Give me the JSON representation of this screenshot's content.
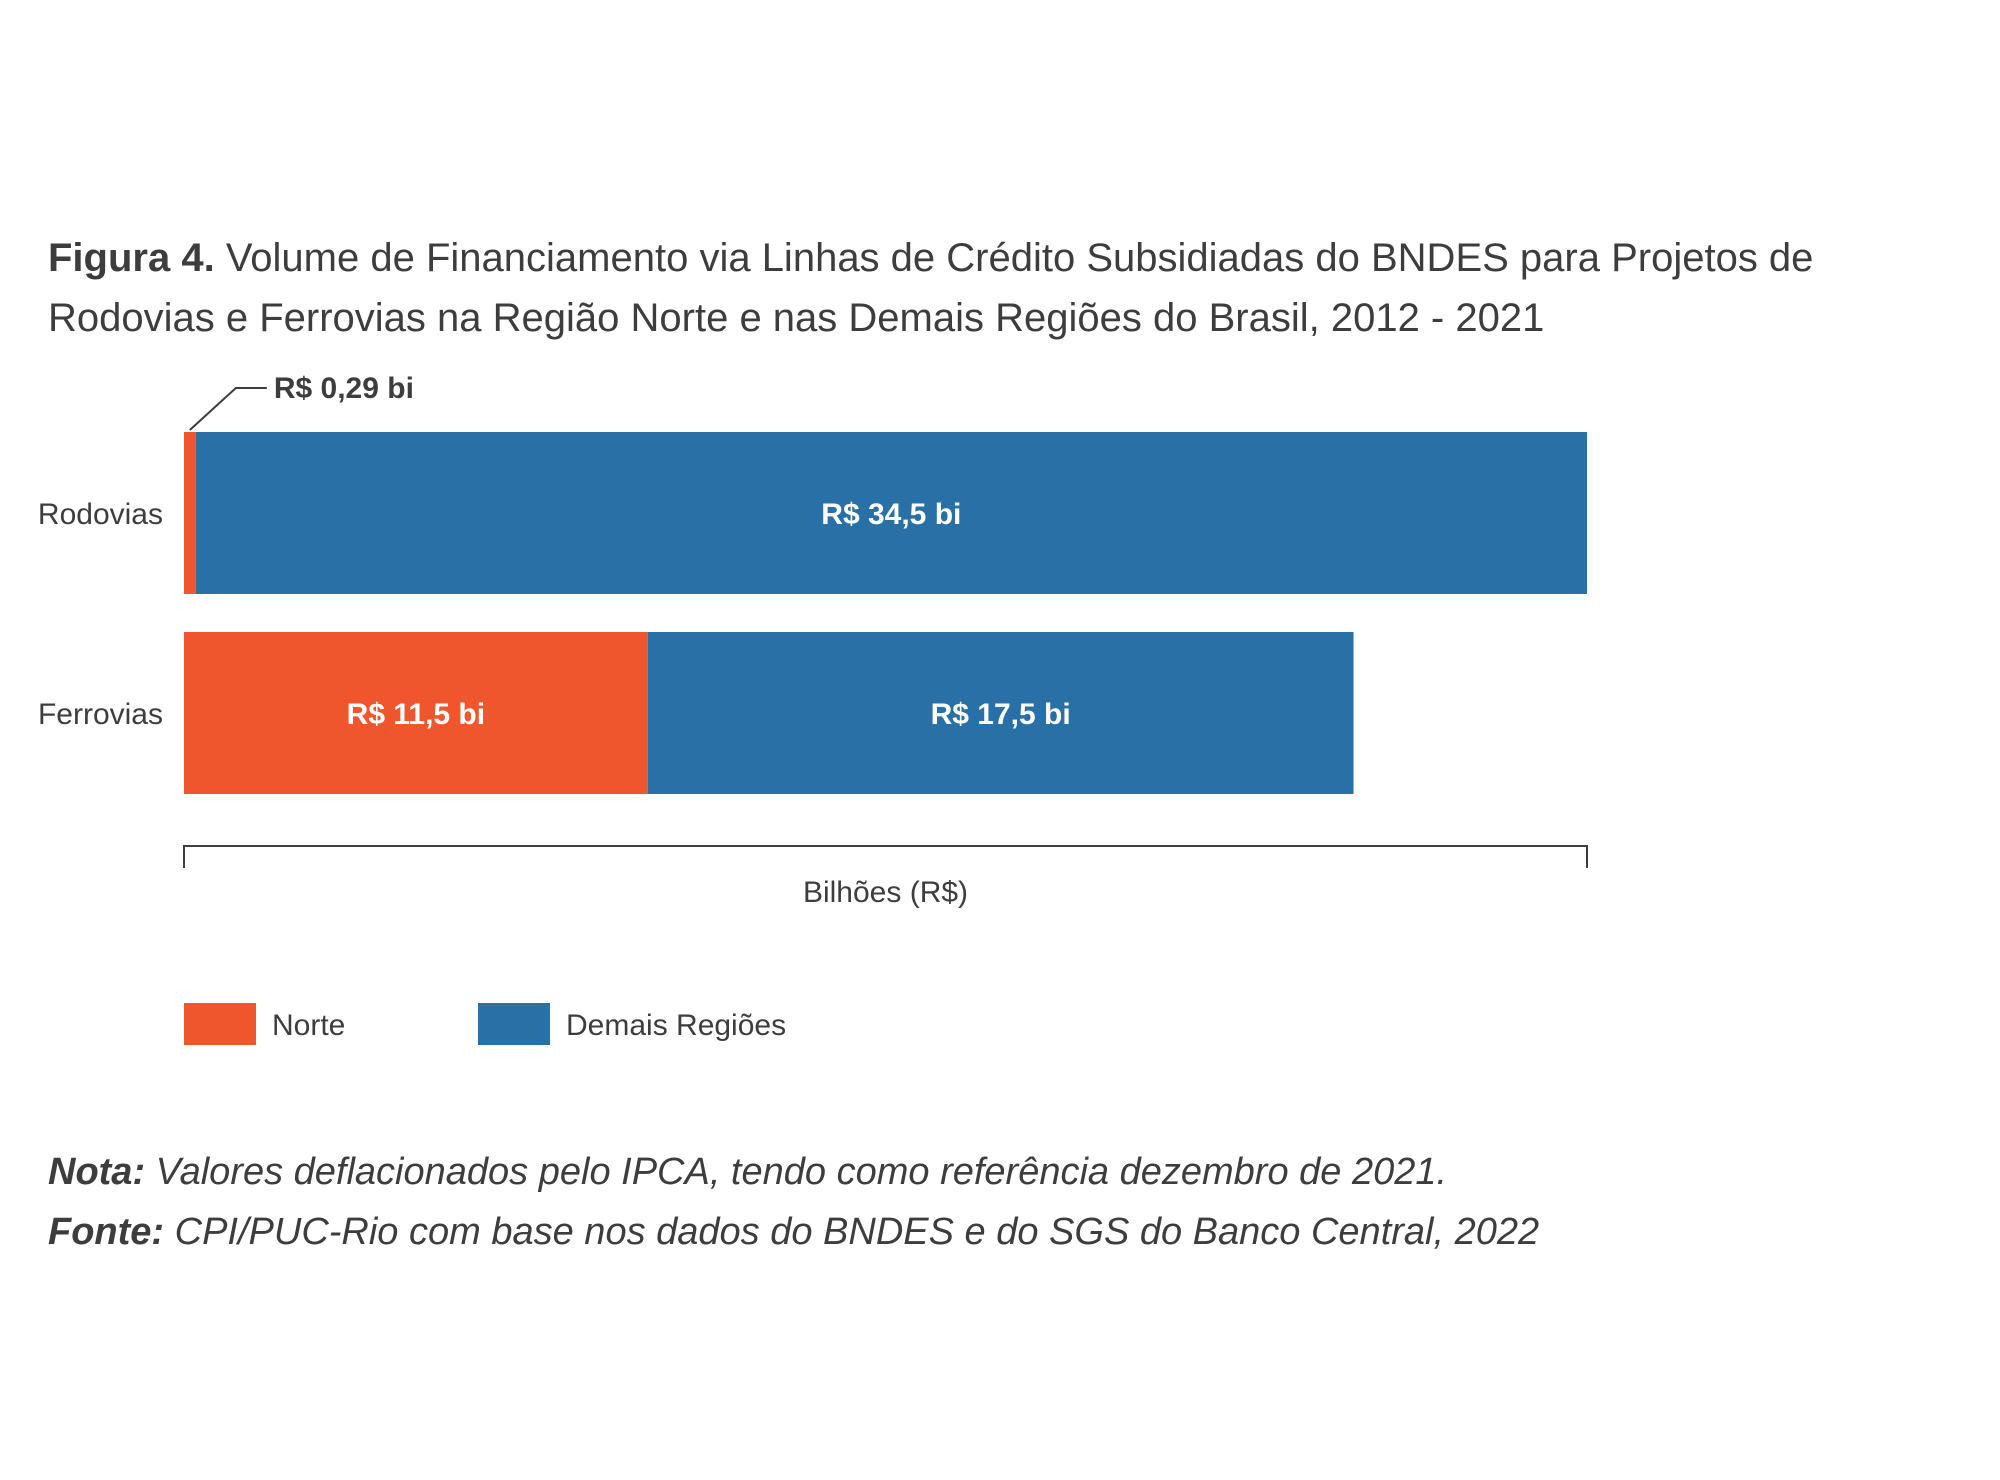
{
  "title": {
    "prefix": "Figura 4.",
    "text": "Volume de Financiamento via Linhas de Crédito Subsidiadas do BNDES para Projetos de Rodovias e Ferrovias na Região Norte e nas Demais Regiões do Brasil, 2012 - 2021"
  },
  "chart_data": {
    "type": "bar",
    "orientation": "horizontal",
    "stacked": true,
    "categories": [
      "Rodovias",
      "Ferrovias"
    ],
    "series": [
      {
        "name": "Norte",
        "color": "#f0562d",
        "values": [
          0.29,
          11.5
        ],
        "labels": [
          "R$ 0,29 bi",
          "R$ 11,5 bi"
        ]
      },
      {
        "name": "Demais Regiões",
        "color": "#2870a5",
        "values": [
          34.5,
          17.5
        ],
        "labels": [
          "R$ 34,5 bi",
          "R$ 17,5 bi"
        ]
      }
    ],
    "xlabel": "Bilhões (R$)",
    "xlim": [
      0,
      34.79
    ],
    "legend": "bottom-left",
    "grid": false
  },
  "notes": {
    "nota_label": "Nota:",
    "nota_text": " Valores deflacionados pelo IPCA, tendo como referência dezembro de 2021.",
    "fonte_label": "Fonte:",
    "fonte_text": " CPI/PUC-Rio com base nos dados do BNDES e do SGS do Banco Central, 2022"
  }
}
